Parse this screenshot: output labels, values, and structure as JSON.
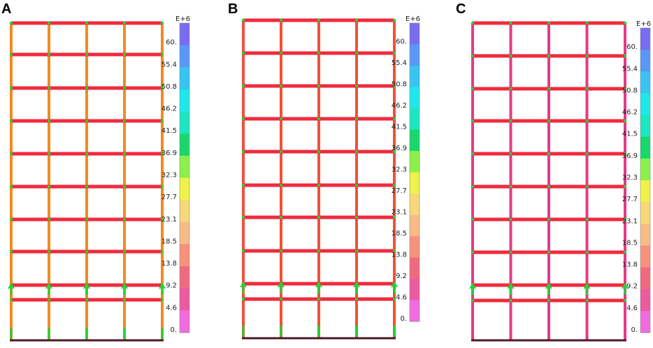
{
  "panels": [
    {
      "label": "A",
      "scale_exponent": "E+6",
      "scale_ticks": [
        "60.",
        "55.4",
        "50.8",
        "46.2",
        "41.5",
        "36.9",
        "32.3",
        "27.7",
        "23.1",
        "18.5",
        "13.8",
        "9.2",
        "4.6",
        "0."
      ],
      "beam_color": "#f02a3c",
      "column_color": "#f28a1e"
    },
    {
      "label": "B",
      "scale_exponent": "E+6",
      "scale_ticks": [
        "60.",
        "55.4",
        "50.8",
        "46.2",
        "41.5",
        "36.9",
        "32.3",
        "27.7",
        "23.1",
        "18.5",
        "13.8",
        "9.2",
        "4.6",
        "0."
      ],
      "beam_color": "#f02a3c",
      "column_color": "#f0503a"
    },
    {
      "label": "C",
      "scale_exponent": "E+6",
      "scale_ticks": [
        "60.",
        "55.4",
        "50.8",
        "46.2",
        "41.5",
        "36.9",
        "32.3",
        "27.7",
        "23.1",
        "18.5",
        "13.8",
        "9.2",
        "4.6",
        "0."
      ],
      "beam_color": "#f02a3c",
      "column_color": "#e53a8a"
    }
  ],
  "scale_colors": [
    "#7a6cf0",
    "#5a98f5",
    "#38c4f2",
    "#1ee8ea",
    "#1ce7c2",
    "#18d86c",
    "#8cf04a",
    "#eef24a",
    "#f6d87a",
    "#f7bb86",
    "#f6927a",
    "#f06a7e",
    "#ec5aa0",
    "#f06ce0"
  ],
  "support_color": "#4a1a2a",
  "marker_color": "#22d23a"
}
